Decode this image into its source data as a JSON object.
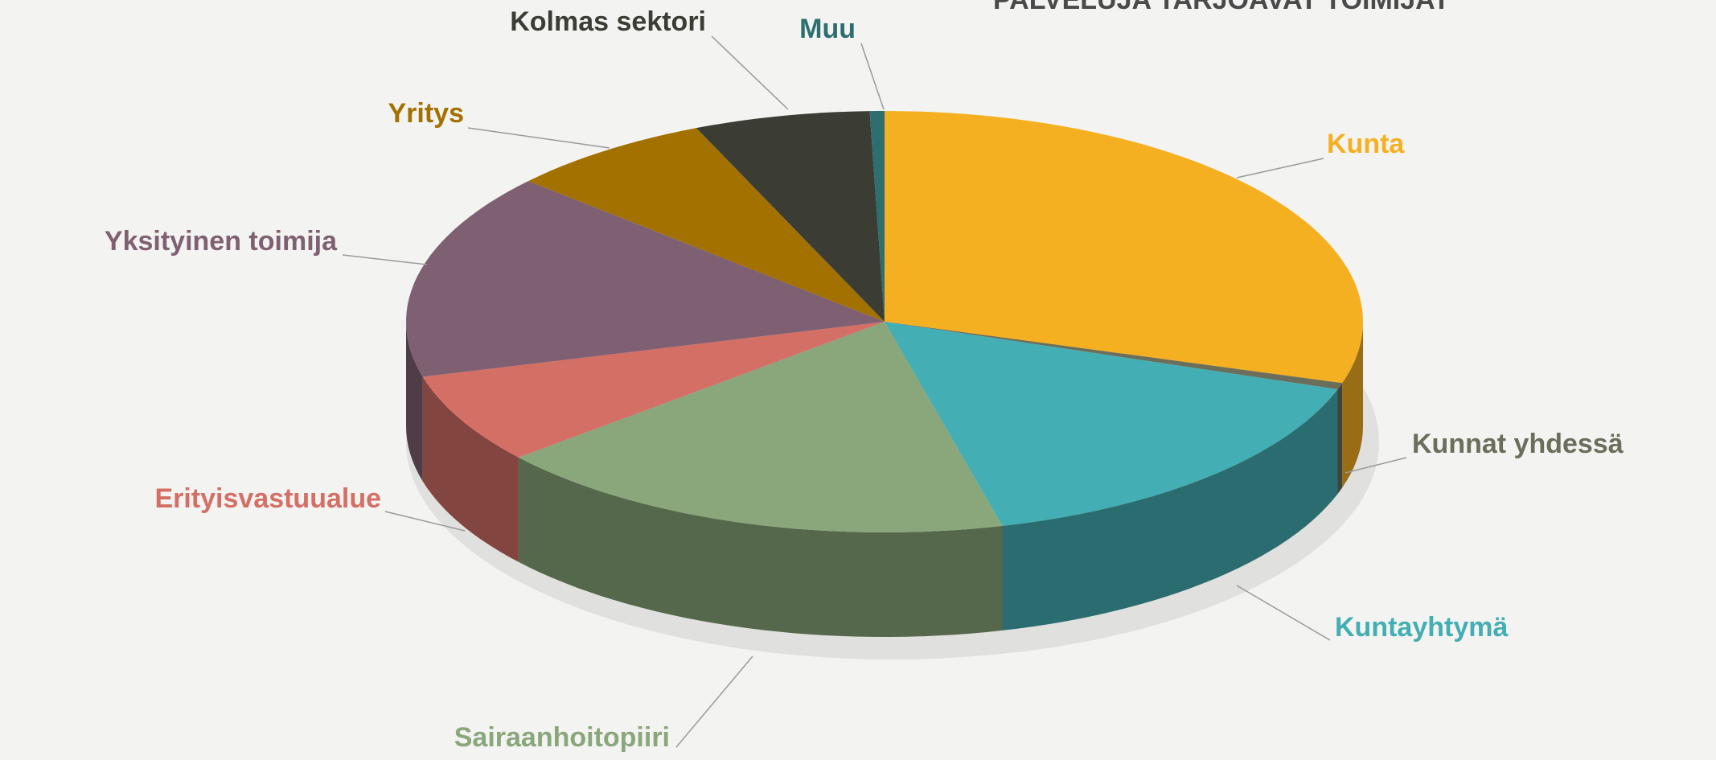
{
  "chart_data": {
    "type": "pie3d",
    "title": "PALVELUJA TARJOAVAT TOIMIJAT",
    "categories": [
      "Kunta",
      "Kunnat yhdessä",
      "Kuntayhtymä",
      "Sairaanhoitopiiri",
      "Erityisvastuualue",
      "Yksityinen toimija",
      "Yritys",
      "Kolmas sektori",
      "Muu"
    ],
    "values": [
      30,
      0.5,
      16,
      18,
      7,
      16,
      7,
      6,
      0.5
    ],
    "colors": [
      "#f5b022",
      "#6a6e5a",
      "#43aeb3",
      "#8aa77b",
      "#d46f66",
      "#7f6072",
      "#a27100",
      "#3b3c34",
      "#2e6e70"
    ]
  }
}
